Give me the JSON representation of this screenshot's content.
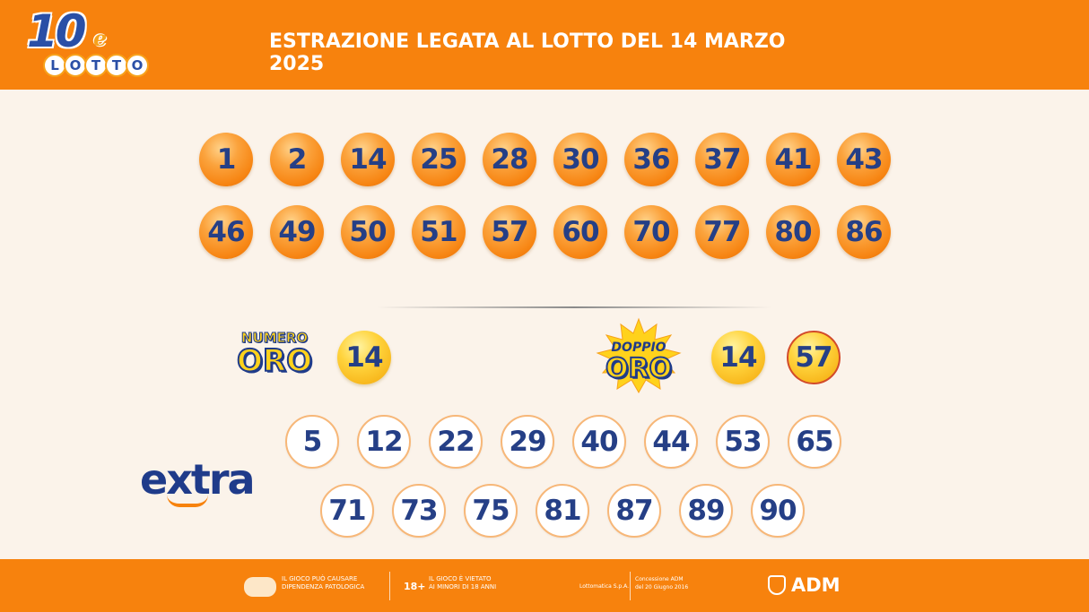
{
  "header": {
    "logo_number": "10",
    "logo_e": "e",
    "logo_word": [
      "L",
      "O",
      "T",
      "T",
      "O"
    ],
    "title": "ESTRAZIONE LEGATA AL LOTTO DEL 14 MARZO 2025"
  },
  "main_numbers": {
    "row1": [
      "1",
      "2",
      "14",
      "25",
      "28",
      "30",
      "36",
      "37",
      "41",
      "43"
    ],
    "row2": [
      "46",
      "49",
      "50",
      "51",
      "57",
      "60",
      "70",
      "77",
      "80",
      "86"
    ]
  },
  "numero_oro": {
    "label_top": "NUMERO",
    "label_bottom": "ORO",
    "value": "14"
  },
  "doppio_oro": {
    "label_top": "DOPPIO",
    "label_bottom": "ORO",
    "values": [
      "14",
      "57"
    ]
  },
  "extra": {
    "logo": "extra",
    "row1": [
      "5",
      "12",
      "22",
      "29",
      "40",
      "44",
      "53",
      "65"
    ],
    "row2": [
      "71",
      "73",
      "75",
      "81",
      "87",
      "89",
      "90"
    ]
  },
  "footer": {
    "gioco_line1": "IL GIOCO PUÒ CAUSARE",
    "gioco_line2": "DIPENDENZA PATOLOGICA",
    "age_badge": "18+",
    "minori_line1": "IL GIOCO È VIETATO",
    "minori_line2": "AI MINORI DI 18 ANNI",
    "operator": "Lottomatica S.p.A.",
    "concessione_line1": "Concessione ADM",
    "concessione_line2": "del 20 Giugno 2016",
    "adm": "ADM"
  },
  "colors": {
    "header_orange": "#f7820d",
    "number_blue": "#253f86",
    "background": "#fbf3ea"
  }
}
